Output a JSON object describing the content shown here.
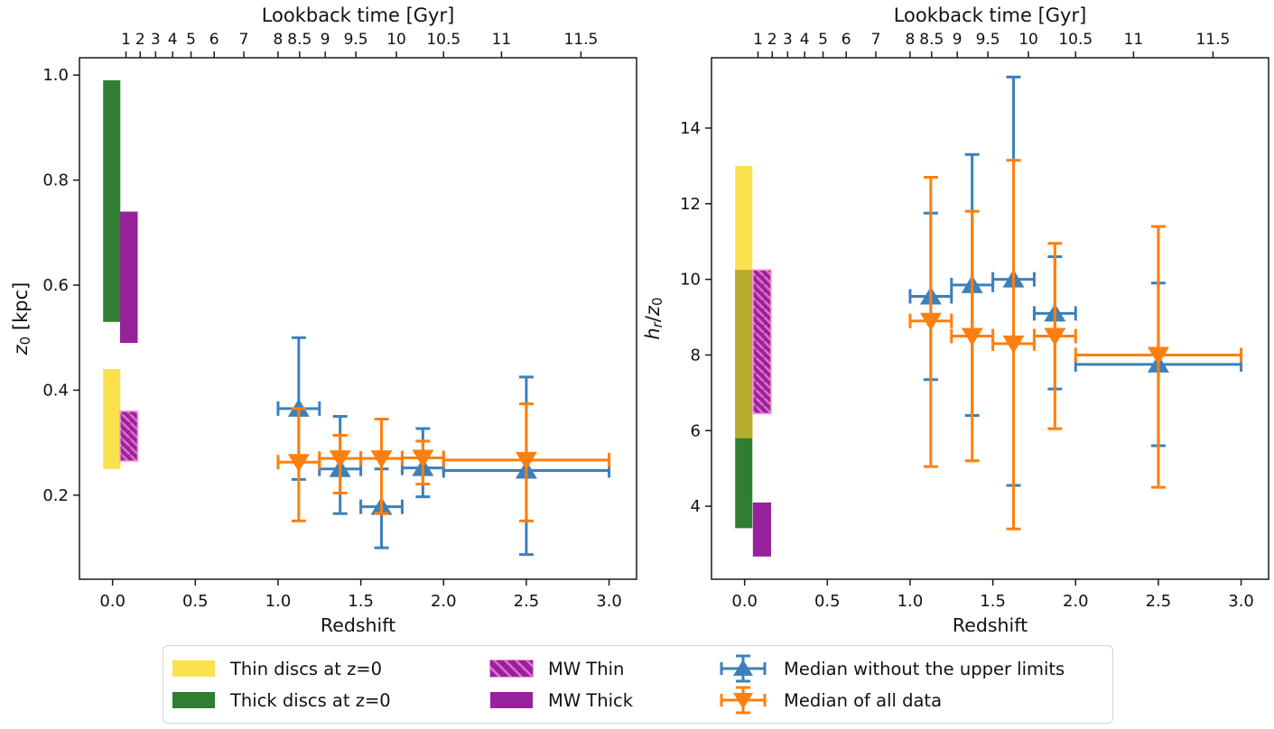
{
  "colors": {
    "yellow": "#fae14d",
    "green": "#2f7e31",
    "purple": "#97239c",
    "olive": "#b6ac2d",
    "blue": "#3d80ba",
    "orange": "#ff7f0e",
    "hatch_pink": "#e36fc6",
    "hatch_edge": "#f79ad9",
    "spine": "#1a1a1a",
    "text": "#111111"
  },
  "top_axis": {
    "title": "Lookback time [Gyr]",
    "tick_labels": [
      "1",
      "2",
      "3",
      "4",
      "5",
      "6",
      "7",
      "8",
      "8.5",
      "9",
      "9.5",
      "10",
      "10.5",
      "11",
      "11.5"
    ],
    "tick_positions_redshift": [
      0.081,
      0.167,
      0.26,
      0.363,
      0.474,
      0.614,
      0.793,
      1.0,
      1.13,
      1.285,
      1.47,
      1.715,
      2.0,
      2.35,
      2.83
    ]
  },
  "x_axis": {
    "title": "Redshift",
    "ticks": [
      0.0,
      0.5,
      1.0,
      1.5,
      2.0,
      2.5,
      3.0
    ],
    "lim": [
      -0.2,
      3.166
    ]
  },
  "chart_data": [
    {
      "type": "errorbar",
      "panel": "left",
      "ylabel_parts": [
        {
          "text": "z",
          "italic": true
        },
        {
          "text": "0",
          "sub": true
        },
        {
          "text": " [kpc]"
        }
      ],
      "ylim": [
        0.04,
        1.033
      ],
      "yticks": [
        0.2,
        0.4,
        0.6,
        0.8,
        1.0
      ],
      "ytick_decimals": 1,
      "bars": [
        {
          "label": "Thick discs at z=0",
          "color_key": "green",
          "x": [
            -0.057,
            0.047
          ],
          "y": [
            0.53,
            0.99
          ]
        },
        {
          "label": "MW Thick",
          "color_key": "purple",
          "x": [
            0.045,
            0.152
          ],
          "y": [
            0.49,
            0.74
          ]
        },
        {
          "label": "Thin discs at z=0",
          "color_key": "yellow",
          "x": [
            -0.057,
            0.047
          ],
          "y": [
            0.25,
            0.44
          ]
        },
        {
          "label": "MW Thin",
          "color_key": "purple",
          "hatch": true,
          "x": [
            0.045,
            0.152
          ],
          "y": [
            0.265,
            0.36
          ]
        }
      ],
      "series": [
        {
          "name": "Median without the upper limits",
          "color_key": "blue",
          "marker": "triangle-up",
          "points": [
            {
              "x": 1.125,
              "y": 0.365,
              "x_lo": 1.0,
              "x_hi": 1.25,
              "y_lo": 0.23,
              "y_hi": 0.5
            },
            {
              "x": 1.375,
              "y": 0.25,
              "x_lo": 1.25,
              "x_hi": 1.5,
              "y_lo": 0.165,
              "y_hi": 0.35
            },
            {
              "x": 1.625,
              "y": 0.178,
              "x_lo": 1.5,
              "x_hi": 1.75,
              "y_lo": 0.1,
              "y_hi": 0.25
            },
            {
              "x": 1.875,
              "y": 0.252,
              "x_lo": 1.75,
              "x_hi": 2.0,
              "y_lo": 0.197,
              "y_hi": 0.327
            },
            {
              "x": 2.5,
              "y": 0.247,
              "x_lo": 2.0,
              "x_hi": 3.0,
              "y_lo": 0.087,
              "y_hi": 0.425
            }
          ]
        },
        {
          "name": "Median of all data",
          "color_key": "orange",
          "marker": "triangle-down",
          "points": [
            {
              "x": 1.125,
              "y": 0.263,
              "x_lo": 1.0,
              "x_hi": 1.25,
              "y_lo": 0.151,
              "y_hi": 0.365
            },
            {
              "x": 1.375,
              "y": 0.27,
              "x_lo": 1.25,
              "x_hi": 1.5,
              "y_lo": 0.204,
              "y_hi": 0.314
            },
            {
              "x": 1.625,
              "y": 0.27,
              "x_lo": 1.5,
              "x_hi": 1.75,
              "y_lo": 0.165,
              "y_hi": 0.345
            },
            {
              "x": 1.875,
              "y": 0.271,
              "x_lo": 1.75,
              "x_hi": 2.0,
              "y_lo": 0.221,
              "y_hi": 0.303
            },
            {
              "x": 2.5,
              "y": 0.267,
              "x_lo": 2.0,
              "x_hi": 3.0,
              "y_lo": 0.151,
              "y_hi": 0.374
            }
          ]
        }
      ]
    },
    {
      "type": "errorbar",
      "panel": "right",
      "ylabel_parts": [
        {
          "text": "h",
          "italic": true
        },
        {
          "text": "r",
          "sub": true,
          "italic": true
        },
        {
          "text": "/"
        },
        {
          "text": "z",
          "italic": true
        },
        {
          "text": "0",
          "sub": true
        }
      ],
      "ylim": [
        2.07,
        15.86
      ],
      "yticks": [
        4,
        6,
        8,
        10,
        12,
        14
      ],
      "ytick_decimals": 0,
      "bars": [
        {
          "label": "Thick discs at z=0",
          "color_key": "green",
          "x": [
            -0.057,
            0.047
          ],
          "y": [
            3.42,
            10.25
          ]
        },
        {
          "label": "Thin discs at z=0",
          "color_key": "yellow",
          "x": [
            -0.057,
            0.047
          ],
          "y": [
            5.8,
            13.0
          ]
        },
        {
          "label": "Thin & Thick overlap",
          "color_key": "olive",
          "x": [
            -0.057,
            0.047
          ],
          "y": [
            5.8,
            10.25
          ]
        },
        {
          "label": "MW Thick",
          "color_key": "purple",
          "x": [
            0.05,
            0.16
          ],
          "y": [
            2.67,
            4.1
          ]
        },
        {
          "label": "MW Thin",
          "color_key": "purple",
          "hatch": true,
          "x": [
            0.05,
            0.16
          ],
          "y": [
            6.45,
            10.25
          ]
        }
      ],
      "series": [
        {
          "name": "Median without the upper limits",
          "color_key": "blue",
          "marker": "triangle-up",
          "points": [
            {
              "x": 1.125,
              "y": 9.55,
              "x_lo": 1.0,
              "x_hi": 1.25,
              "y_lo": 7.35,
              "y_hi": 11.75
            },
            {
              "x": 1.375,
              "y": 9.85,
              "x_lo": 1.25,
              "x_hi": 1.5,
              "y_lo": 6.4,
              "y_hi": 13.3
            },
            {
              "x": 1.625,
              "y": 10.0,
              "x_lo": 1.5,
              "x_hi": 1.75,
              "y_lo": 4.55,
              "y_hi": 15.35
            },
            {
              "x": 1.875,
              "y": 9.1,
              "x_lo": 1.75,
              "x_hi": 2.0,
              "y_lo": 7.1,
              "y_hi": 10.6
            },
            {
              "x": 2.5,
              "y": 7.75,
              "x_lo": 2.0,
              "x_hi": 3.0,
              "y_lo": 5.6,
              "y_hi": 9.9
            }
          ]
        },
        {
          "name": "Median of all data",
          "color_key": "orange",
          "marker": "triangle-down",
          "points": [
            {
              "x": 1.125,
              "y": 8.9,
              "x_lo": 1.0,
              "x_hi": 1.25,
              "y_lo": 5.05,
              "y_hi": 12.7
            },
            {
              "x": 1.375,
              "y": 8.5,
              "x_lo": 1.25,
              "x_hi": 1.5,
              "y_lo": 5.2,
              "y_hi": 11.8
            },
            {
              "x": 1.625,
              "y": 8.3,
              "x_lo": 1.5,
              "x_hi": 1.75,
              "y_lo": 3.4,
              "y_hi": 13.15
            },
            {
              "x": 1.875,
              "y": 8.5,
              "x_lo": 1.75,
              "x_hi": 2.0,
              "y_lo": 6.05,
              "y_hi": 10.95
            },
            {
              "x": 2.5,
              "y": 8.0,
              "x_lo": 2.0,
              "x_hi": 3.0,
              "y_lo": 4.5,
              "y_hi": 11.4
            }
          ]
        }
      ]
    }
  ],
  "legend": {
    "entries": [
      {
        "type": "patch",
        "color_key": "yellow",
        "label": "Thin discs at z=0"
      },
      {
        "type": "patch",
        "color_key": "green",
        "label": "Thick discs at z=0"
      },
      {
        "type": "patch-hatched",
        "color_key": "purple",
        "label": "MW Thin"
      },
      {
        "type": "patch",
        "color_key": "purple",
        "label": "MW Thick"
      },
      {
        "type": "errorbar",
        "color_key": "blue",
        "marker": "triangle-up",
        "label": "Median without the upper limits"
      },
      {
        "type": "errorbar",
        "color_key": "orange",
        "marker": "triangle-down",
        "label": "Median of all data"
      }
    ]
  }
}
